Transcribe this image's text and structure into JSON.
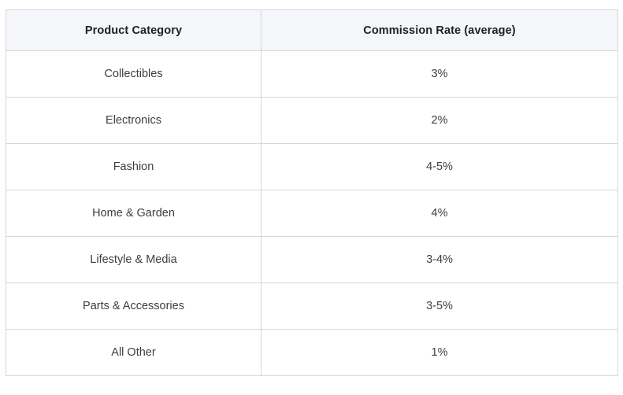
{
  "table": {
    "headers": [
      "Product Category",
      "Commission Rate (average)"
    ],
    "rows": [
      {
        "category": "Collectibles",
        "rate": "3%"
      },
      {
        "category": "Electronics",
        "rate": "2%"
      },
      {
        "category": "Fashion",
        "rate": "4-5%"
      },
      {
        "category": "Home & Garden",
        "rate": "4%"
      },
      {
        "category": "Lifestyle & Media",
        "rate": "3-4%"
      },
      {
        "category": "Parts & Accessories",
        "rate": "3-5%"
      },
      {
        "category": "All Other",
        "rate": "1%"
      }
    ]
  },
  "chart_data": {
    "type": "table",
    "title": "",
    "columns": [
      "Product Category",
      "Commission Rate (average)"
    ],
    "rows": [
      [
        "Collectibles",
        "3%"
      ],
      [
        "Electronics",
        "2%"
      ],
      [
        "Fashion",
        "4-5%"
      ],
      [
        "Home & Garden",
        "4%"
      ],
      [
        "Lifestyle & Media",
        "3-4%"
      ],
      [
        "Parts & Accessories",
        "3-5%"
      ],
      [
        "All Other",
        "1%"
      ]
    ]
  },
  "colors": {
    "header_bg": "#f5f6f9",
    "border": "#d4d7dc",
    "header_text": "#202124",
    "body_text": "#3c4043",
    "background": "#ffffff"
  }
}
